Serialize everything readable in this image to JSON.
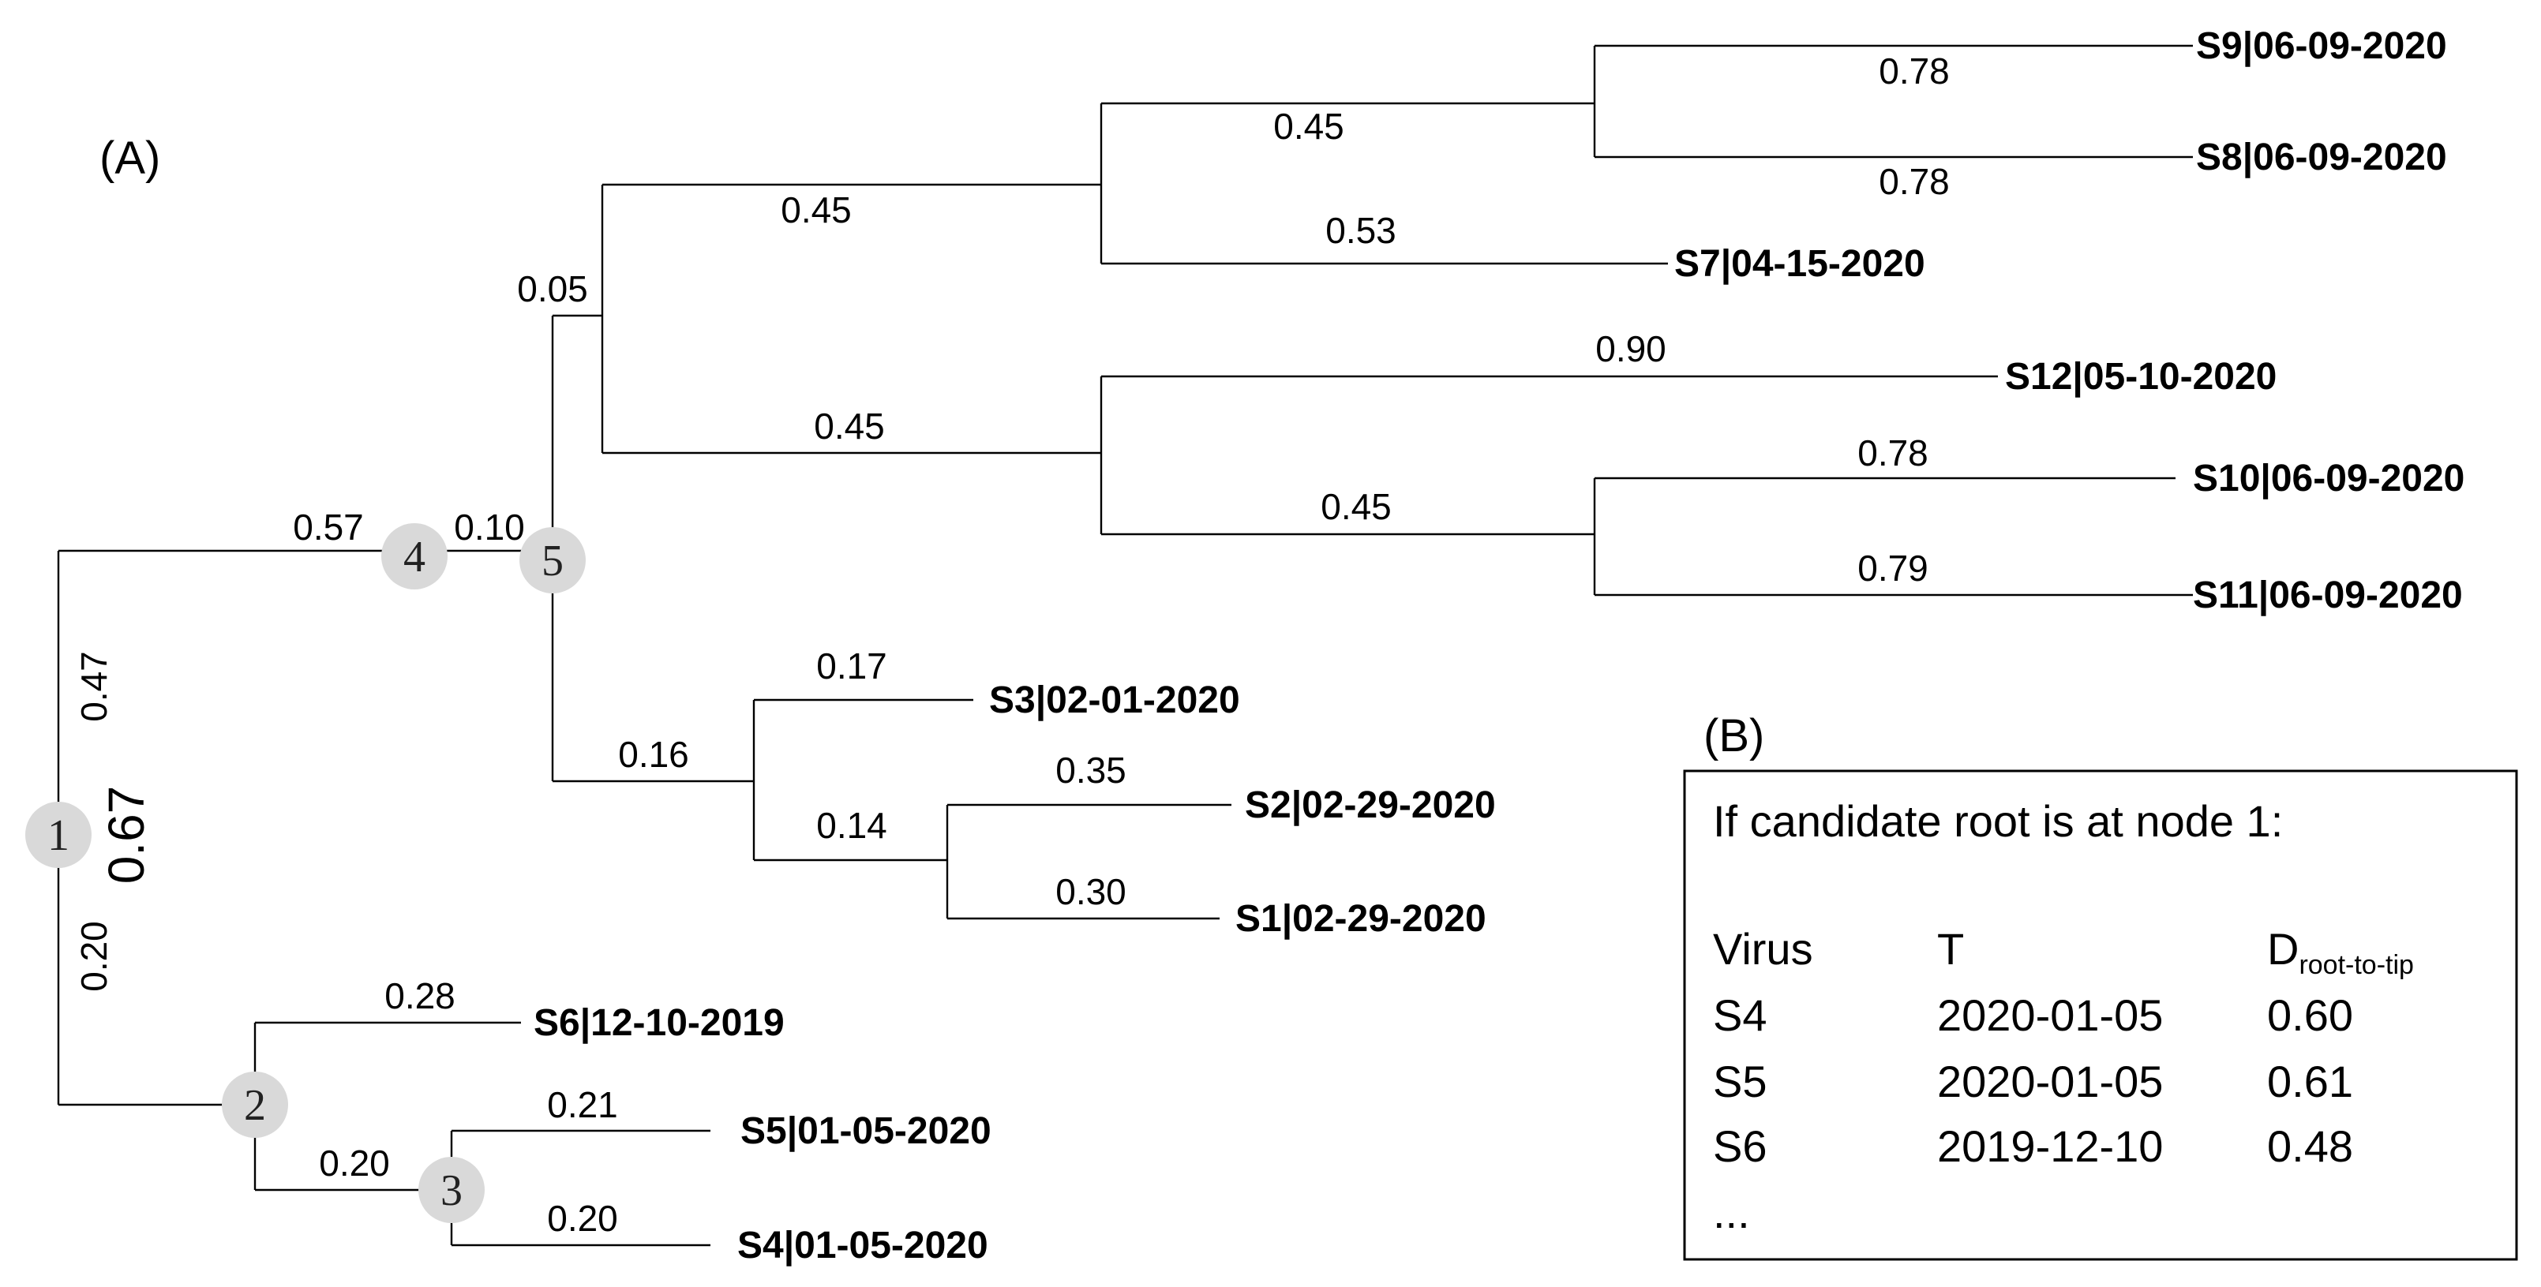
{
  "panel_a": {
    "label": "(A)",
    "nodes": [
      "1",
      "2",
      "3",
      "4",
      "5"
    ],
    "tips": [
      {
        "id": "S9",
        "label": "S9|06-09-2020"
      },
      {
        "id": "S8",
        "label": "S8|06-09-2020"
      },
      {
        "id": "S7",
        "label": "S7|04-15-2020"
      },
      {
        "id": "S12",
        "label": "S12|05-10-2020"
      },
      {
        "id": "S10",
        "label": "S10|06-09-2020"
      },
      {
        "id": "S11",
        "label": "S11|06-09-2020"
      },
      {
        "id": "S3",
        "label": "S3|02-01-2020"
      },
      {
        "id": "S2",
        "label": "S2|02-29-2020"
      },
      {
        "id": "S1",
        "label": "S1|02-29-2020"
      },
      {
        "id": "S6",
        "label": "S6|12-10-2019"
      },
      {
        "id": "S5",
        "label": "S5|01-05-2020"
      },
      {
        "id": "S4",
        "label": "S4|01-05-2020"
      }
    ],
    "branch_lengths": {
      "n1_n4": "0.47",
      "n1_n2": "0.20",
      "root_total": "0.67",
      "n4_left": "0.57",
      "n4_n5": "0.10",
      "n5_up": "0.05",
      "upper_clade": "0.45",
      "s7_clade": "0.45",
      "s9_s8_clade": "0.45",
      "s9": "0.78",
      "s8": "0.78",
      "s7": "0.53",
      "lower_clade": "0.45",
      "s12": "0.90",
      "s10_s11_clade": "0.45",
      "s10": "0.78",
      "s11": "0.79",
      "n5_down": "0.16",
      "s3": "0.17",
      "s1_s2_clade": "0.14",
      "s2": "0.35",
      "s1": "0.30",
      "s6": "0.28",
      "n2_n3": "0.20",
      "s5": "0.21",
      "s4": "0.20"
    },
    "colors": {
      "green": "#22a845",
      "red": "#e8140f",
      "magenta": "#e61ee6",
      "node_fill": "#d9d9d9"
    }
  },
  "panel_b": {
    "label": "(B)",
    "heading": "If candidate root is at node 1:",
    "col_virus": "Virus",
    "col_t": "T",
    "col_d_main": "D",
    "col_d_sub": "root-to-tip",
    "rows": [
      {
        "virus": "S4",
        "t": "2020-01-05",
        "d": "0.60"
      },
      {
        "virus": "S5",
        "t": "2020-01-05",
        "d": "0.61"
      },
      {
        "virus": "S6",
        "t": "2019-12-10",
        "d": "0.48"
      }
    ],
    "ellipsis": "..."
  }
}
